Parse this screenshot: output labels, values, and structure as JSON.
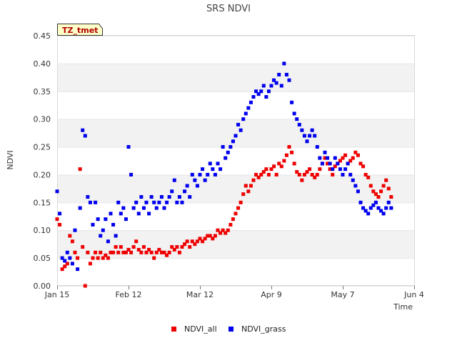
{
  "chart_data": {
    "type": "scatter",
    "title": "SRS NDVI",
    "xlabel": "Time",
    "ylabel": "NDVI",
    "tag": "TZ_tmet",
    "x_axis": {
      "min_day": 0,
      "max_day": 140,
      "ticks": [
        {
          "label": "Jan 15",
          "day": 0
        },
        {
          "label": "Feb 12",
          "day": 28
        },
        {
          "label": "Mar 12",
          "day": 56
        },
        {
          "label": "Apr 9",
          "day": 84
        },
        {
          "label": "May 7",
          "day": 112
        },
        {
          "label": "Jun 4",
          "day": 140
        }
      ]
    },
    "y_axis": {
      "min": 0.0,
      "max": 0.45,
      "ticks": [
        "0.00",
        "0.05",
        "0.10",
        "0.15",
        "0.20",
        "0.25",
        "0.30",
        "0.35",
        "0.40",
        "0.45"
      ]
    },
    "series": [
      {
        "name": "NDVI_all",
        "color": "#ee0000",
        "points": [
          [
            0,
            0.12
          ],
          [
            1,
            0.11
          ],
          [
            2,
            0.03
          ],
          [
            3,
            0.035
          ],
          [
            4,
            0.04
          ],
          [
            5,
            0.09
          ],
          [
            6,
            0.08
          ],
          [
            7,
            0.06
          ],
          [
            8,
            0.05
          ],
          [
            9,
            0.21
          ],
          [
            10,
            0.07
          ],
          [
            11,
            0.0
          ],
          [
            12,
            0.06
          ],
          [
            13,
            0.04
          ],
          [
            14,
            0.05
          ],
          [
            15,
            0.06
          ],
          [
            16,
            0.05
          ],
          [
            17,
            0.06
          ],
          [
            18,
            0.05
          ],
          [
            19,
            0.055
          ],
          [
            20,
            0.05
          ],
          [
            21,
            0.06
          ],
          [
            22,
            0.06
          ],
          [
            23,
            0.07
          ],
          [
            24,
            0.06
          ],
          [
            25,
            0.07
          ],
          [
            26,
            0.06
          ],
          [
            27,
            0.06
          ],
          [
            28,
            0.065
          ],
          [
            29,
            0.06
          ],
          [
            30,
            0.07
          ],
          [
            31,
            0.08
          ],
          [
            32,
            0.065
          ],
          [
            33,
            0.06
          ],
          [
            34,
            0.07
          ],
          [
            35,
            0.06
          ],
          [
            36,
            0.065
          ],
          [
            37,
            0.06
          ],
          [
            38,
            0.05
          ],
          [
            39,
            0.06
          ],
          [
            40,
            0.065
          ],
          [
            41,
            0.06
          ],
          [
            42,
            0.06
          ],
          [
            43,
            0.055
          ],
          [
            44,
            0.06
          ],
          [
            45,
            0.07
          ],
          [
            46,
            0.065
          ],
          [
            47,
            0.07
          ],
          [
            48,
            0.06
          ],
          [
            49,
            0.07
          ],
          [
            50,
            0.075
          ],
          [
            51,
            0.08
          ],
          [
            52,
            0.07
          ],
          [
            53,
            0.08
          ],
          [
            54,
            0.075
          ],
          [
            55,
            0.08
          ],
          [
            56,
            0.085
          ],
          [
            57,
            0.08
          ],
          [
            58,
            0.085
          ],
          [
            59,
            0.09
          ],
          [
            60,
            0.09
          ],
          [
            61,
            0.085
          ],
          [
            62,
            0.09
          ],
          [
            63,
            0.1
          ],
          [
            64,
            0.095
          ],
          [
            65,
            0.1
          ],
          [
            66,
            0.095
          ],
          [
            67,
            0.1
          ],
          [
            68,
            0.11
          ],
          [
            69,
            0.12
          ],
          [
            70,
            0.13
          ],
          [
            71,
            0.14
          ],
          [
            72,
            0.15
          ],
          [
            73,
            0.165
          ],
          [
            74,
            0.18
          ],
          [
            75,
            0.17
          ],
          [
            76,
            0.18
          ],
          [
            77,
            0.19
          ],
          [
            78,
            0.2
          ],
          [
            79,
            0.195
          ],
          [
            80,
            0.2
          ],
          [
            81,
            0.205
          ],
          [
            82,
            0.21
          ],
          [
            83,
            0.2
          ],
          [
            84,
            0.21
          ],
          [
            85,
            0.215
          ],
          [
            86,
            0.2
          ],
          [
            87,
            0.22
          ],
          [
            88,
            0.215
          ],
          [
            89,
            0.225
          ],
          [
            90,
            0.235
          ],
          [
            91,
            0.25
          ],
          [
            92,
            0.24
          ],
          [
            93,
            0.22
          ],
          [
            94,
            0.205
          ],
          [
            95,
            0.2
          ],
          [
            96,
            0.19
          ],
          [
            97,
            0.2
          ],
          [
            98,
            0.205
          ],
          [
            99,
            0.21
          ],
          [
            100,
            0.2
          ],
          [
            101,
            0.195
          ],
          [
            102,
            0.2
          ],
          [
            103,
            0.21
          ],
          [
            104,
            0.22
          ],
          [
            105,
            0.23
          ],
          [
            106,
            0.22
          ],
          [
            107,
            0.21
          ],
          [
            108,
            0.2
          ],
          [
            109,
            0.215
          ],
          [
            110,
            0.22
          ],
          [
            111,
            0.225
          ],
          [
            112,
            0.23
          ],
          [
            113,
            0.235
          ],
          [
            114,
            0.22
          ],
          [
            115,
            0.225
          ],
          [
            116,
            0.23
          ],
          [
            117,
            0.24
          ],
          [
            118,
            0.235
          ],
          [
            119,
            0.22
          ],
          [
            120,
            0.215
          ],
          [
            121,
            0.2
          ],
          [
            122,
            0.195
          ],
          [
            123,
            0.18
          ],
          [
            124,
            0.17
          ],
          [
            125,
            0.165
          ],
          [
            126,
            0.16
          ],
          [
            127,
            0.17
          ],
          [
            128,
            0.18
          ],
          [
            129,
            0.19
          ],
          [
            130,
            0.175
          ],
          [
            131,
            0.16
          ]
        ]
      },
      {
        "name": "NDVI_grass",
        "color": "#0000ee",
        "points": [
          [
            0,
            0.17
          ],
          [
            1,
            0.13
          ],
          [
            2,
            0.05
          ],
          [
            3,
            0.045
          ],
          [
            4,
            0.06
          ],
          [
            5,
            0.05
          ],
          [
            6,
            0.04
          ],
          [
            7,
            0.1
          ],
          [
            8,
            0.03
          ],
          [
            9,
            0.14
          ],
          [
            10,
            0.28
          ],
          [
            11,
            0.27
          ],
          [
            12,
            0.16
          ],
          [
            13,
            0.15
          ],
          [
            14,
            0.11
          ],
          [
            15,
            0.15
          ],
          [
            16,
            0.12
          ],
          [
            17,
            0.09
          ],
          [
            18,
            0.1
          ],
          [
            19,
            0.12
          ],
          [
            20,
            0.08
          ],
          [
            21,
            0.13
          ],
          [
            22,
            0.11
          ],
          [
            23,
            0.09
          ],
          [
            24,
            0.15
          ],
          [
            25,
            0.13
          ],
          [
            26,
            0.14
          ],
          [
            27,
            0.12
          ],
          [
            28,
            0.25
          ],
          [
            29,
            0.2
          ],
          [
            30,
            0.14
          ],
          [
            31,
            0.15
          ],
          [
            32,
            0.13
          ],
          [
            33,
            0.16
          ],
          [
            34,
            0.14
          ],
          [
            35,
            0.15
          ],
          [
            36,
            0.13
          ],
          [
            37,
            0.16
          ],
          [
            38,
            0.15
          ],
          [
            39,
            0.14
          ],
          [
            40,
            0.15
          ],
          [
            41,
            0.16
          ],
          [
            42,
            0.14
          ],
          [
            43,
            0.15
          ],
          [
            44,
            0.16
          ],
          [
            45,
            0.17
          ],
          [
            46,
            0.19
          ],
          [
            47,
            0.15
          ],
          [
            48,
            0.16
          ],
          [
            49,
            0.15
          ],
          [
            50,
            0.17
          ],
          [
            51,
            0.18
          ],
          [
            52,
            0.16
          ],
          [
            53,
            0.2
          ],
          [
            54,
            0.19
          ],
          [
            55,
            0.18
          ],
          [
            56,
            0.2
          ],
          [
            57,
            0.21
          ],
          [
            58,
            0.19
          ],
          [
            59,
            0.2
          ],
          [
            60,
            0.22
          ],
          [
            61,
            0.21
          ],
          [
            62,
            0.2
          ],
          [
            63,
            0.22
          ],
          [
            64,
            0.21
          ],
          [
            65,
            0.25
          ],
          [
            66,
            0.23
          ],
          [
            67,
            0.24
          ],
          [
            68,
            0.25
          ],
          [
            69,
            0.26
          ],
          [
            70,
            0.27
          ],
          [
            71,
            0.29
          ],
          [
            72,
            0.28
          ],
          [
            73,
            0.3
          ],
          [
            74,
            0.31
          ],
          [
            75,
            0.32
          ],
          [
            76,
            0.33
          ],
          [
            77,
            0.34
          ],
          [
            78,
            0.35
          ],
          [
            79,
            0.345
          ],
          [
            80,
            0.35
          ],
          [
            81,
            0.36
          ],
          [
            82,
            0.34
          ],
          [
            83,
            0.35
          ],
          [
            84,
            0.36
          ],
          [
            85,
            0.37
          ],
          [
            86,
            0.365
          ],
          [
            87,
            0.38
          ],
          [
            88,
            0.36
          ],
          [
            89,
            0.4
          ],
          [
            90,
            0.38
          ],
          [
            91,
            0.37
          ],
          [
            92,
            0.33
          ],
          [
            93,
            0.31
          ],
          [
            94,
            0.3
          ],
          [
            95,
            0.29
          ],
          [
            96,
            0.28
          ],
          [
            97,
            0.27
          ],
          [
            98,
            0.26
          ],
          [
            99,
            0.27
          ],
          [
            100,
            0.28
          ],
          [
            101,
            0.27
          ],
          [
            102,
            0.25
          ],
          [
            103,
            0.23
          ],
          [
            104,
            0.22
          ],
          [
            105,
            0.24
          ],
          [
            106,
            0.23
          ],
          [
            107,
            0.22
          ],
          [
            108,
            0.21
          ],
          [
            109,
            0.23
          ],
          [
            110,
            0.22
          ],
          [
            111,
            0.21
          ],
          [
            112,
            0.2
          ],
          [
            113,
            0.21
          ],
          [
            114,
            0.22
          ],
          [
            115,
            0.2
          ],
          [
            116,
            0.19
          ],
          [
            117,
            0.18
          ],
          [
            118,
            0.17
          ],
          [
            119,
            0.15
          ],
          [
            120,
            0.14
          ],
          [
            121,
            0.135
          ],
          [
            122,
            0.13
          ],
          [
            123,
            0.14
          ],
          [
            124,
            0.145
          ],
          [
            125,
            0.15
          ],
          [
            126,
            0.14
          ],
          [
            127,
            0.135
          ],
          [
            128,
            0.13
          ],
          [
            129,
            0.14
          ],
          [
            130,
            0.15
          ],
          [
            131,
            0.14
          ]
        ]
      }
    ],
    "legend_position": "bottom-center"
  }
}
